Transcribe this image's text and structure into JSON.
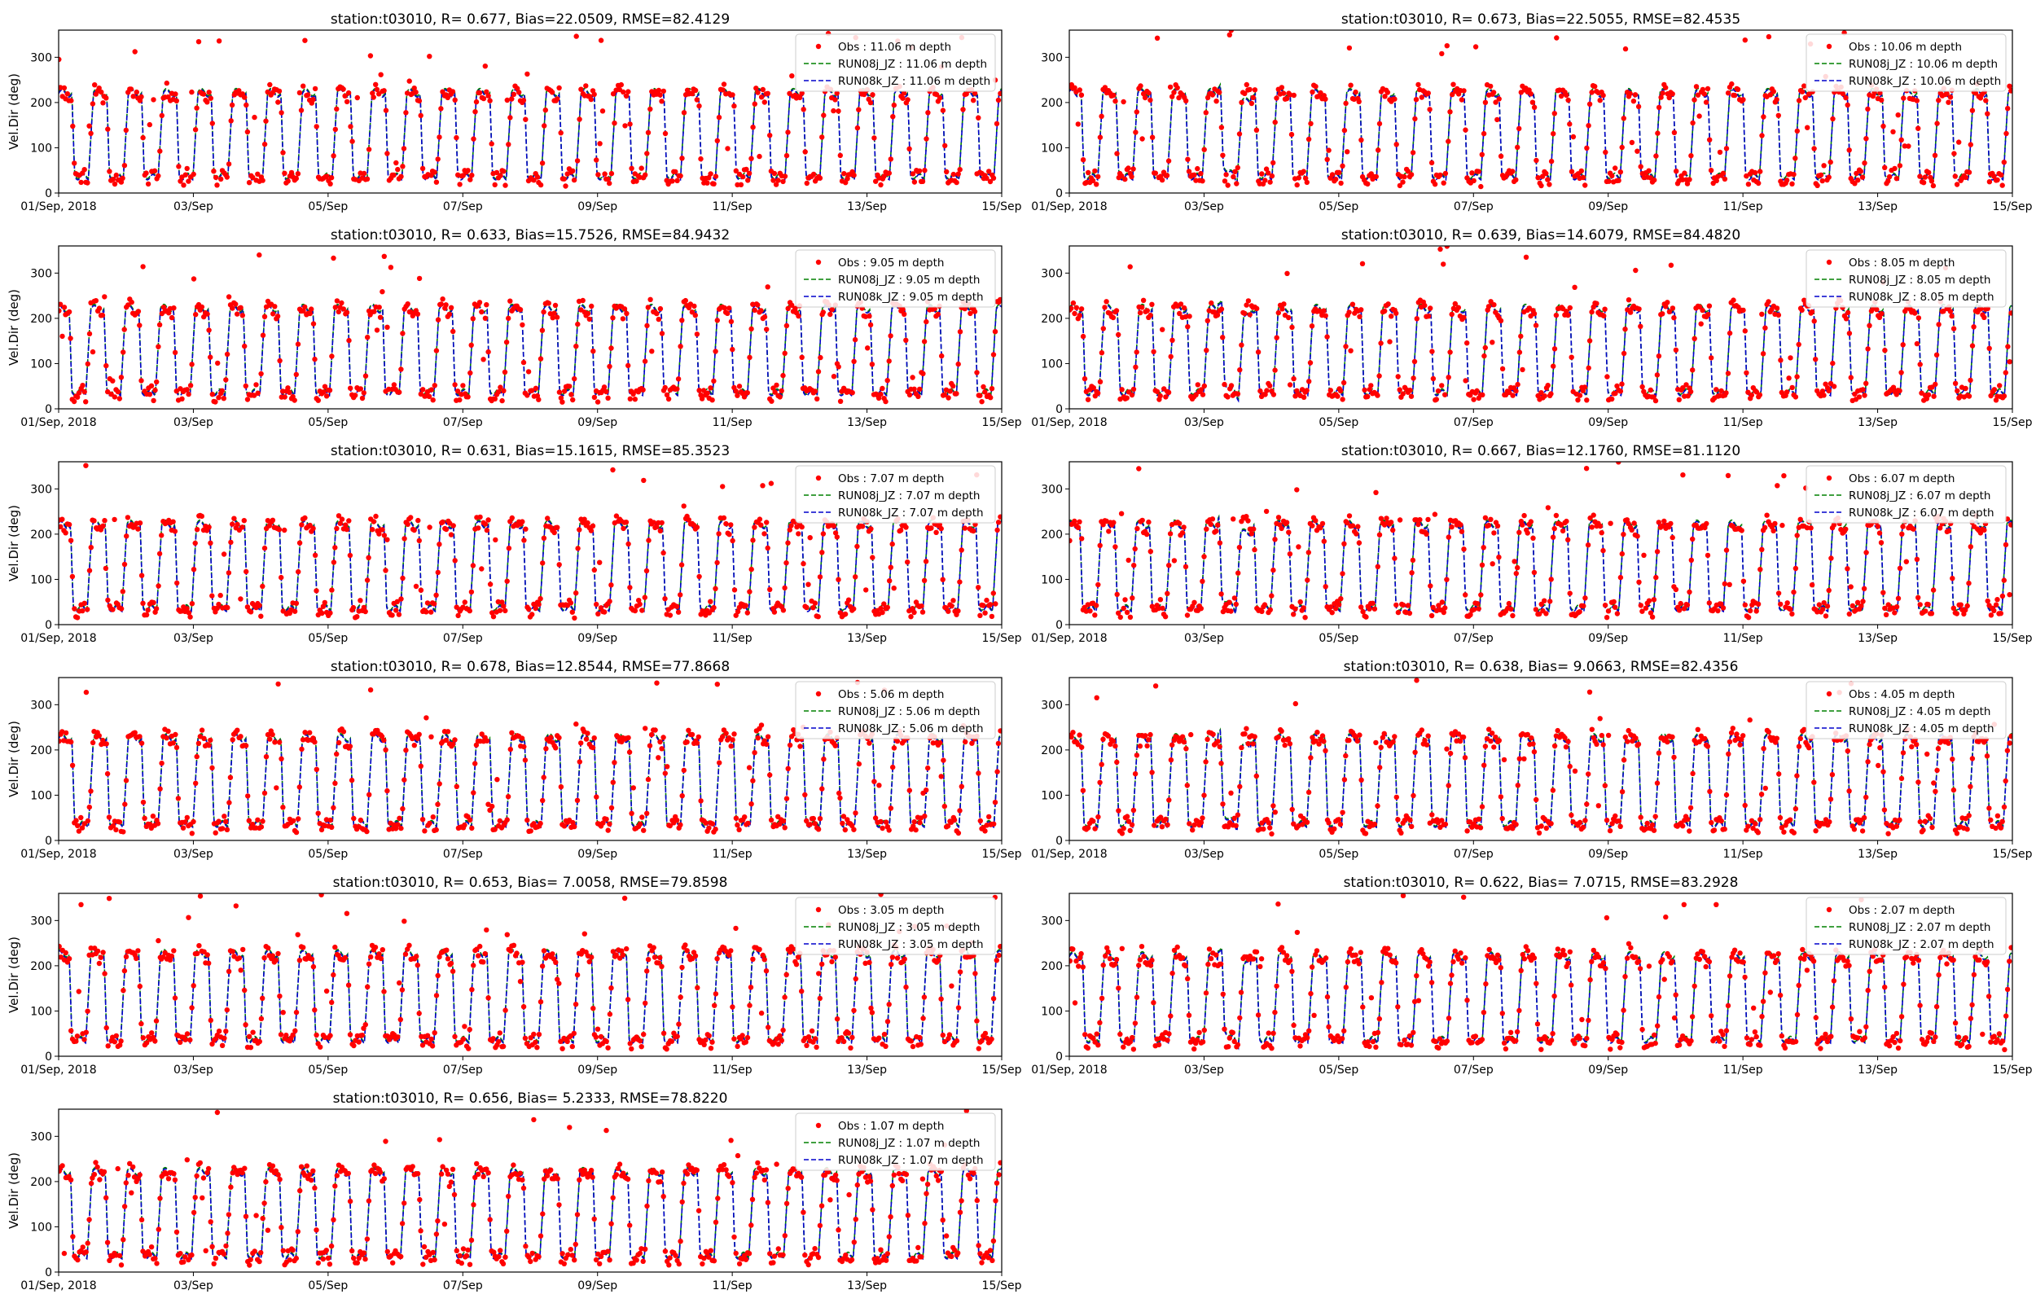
{
  "figure": {
    "colors": {
      "obs": "#ff0000",
      "run08j": "#008000",
      "run08k": "#0000cc",
      "axis": "#000000"
    }
  },
  "chart_data": [
    {
      "type": "scatter",
      "title": "station:t03010, R= 0.677, Bias=22.0509, RMSE=82.4129",
      "xlabel": "",
      "ylabel": "Vel.Dir (deg)",
      "x_range": [
        "2018-09-01",
        "2018-09-15"
      ],
      "ylim": [
        0,
        360
      ],
      "x_tick_labels": [
        "01/Sep, 2018",
        "03/Sep",
        "05/Sep",
        "07/Sep",
        "09/Sep",
        "11/Sep",
        "13/Sep",
        "15/Sep"
      ],
      "y_ticks": [
        0,
        100,
        200,
        300
      ],
      "legend_position": "top-right",
      "series": [
        {
          "name": "Obs : 11.06 m depth",
          "style": "points",
          "color": "#ff0000"
        },
        {
          "name": "RUN08j_JZ : 11.06 m depth",
          "style": "dashed-line",
          "color": "#008000"
        },
        {
          "name": "RUN08k_JZ : 11.06 m depth",
          "style": "dashed-line",
          "color": "#0000cc"
        }
      ],
      "pattern": {
        "upper_deg": 220,
        "lower_deg": 35
      }
    },
    {
      "type": "scatter",
      "title": "station:t03010, R= 0.673, Bias=22.5055, RMSE=82.4535",
      "xlabel": "",
      "ylabel": "",
      "x_range": [
        "2018-09-01",
        "2018-09-15"
      ],
      "ylim": [
        0,
        360
      ],
      "x_tick_labels": [
        "01/Sep, 2018",
        "03/Sep",
        "05/Sep",
        "07/Sep",
        "09/Sep",
        "11/Sep",
        "13/Sep",
        "15/Sep"
      ],
      "y_ticks": [
        0,
        100,
        200,
        300
      ],
      "legend_position": "top-right",
      "series": [
        {
          "name": "Obs : 10.06 m depth",
          "style": "points",
          "color": "#ff0000"
        },
        {
          "name": "RUN08j_JZ : 10.06 m depth",
          "style": "dashed-line",
          "color": "#008000"
        },
        {
          "name": "RUN08k_JZ : 10.06 m depth",
          "style": "dashed-line",
          "color": "#0000cc"
        }
      ],
      "pattern": {
        "upper_deg": 220,
        "lower_deg": 35
      }
    },
    {
      "type": "scatter",
      "title": "station:t03010, R= 0.633, Bias=15.7526, RMSE=84.9432",
      "xlabel": "",
      "ylabel": "Vel.Dir (deg)",
      "x_range": [
        "2018-09-01",
        "2018-09-15"
      ],
      "ylim": [
        0,
        360
      ],
      "x_tick_labels": [
        "01/Sep, 2018",
        "03/Sep",
        "05/Sep",
        "07/Sep",
        "09/Sep",
        "11/Sep",
        "13/Sep",
        "15/Sep"
      ],
      "y_ticks": [
        0,
        100,
        200,
        300
      ],
      "legend_position": "top-right",
      "series": [
        {
          "name": "Obs : 9.05 m depth",
          "style": "points",
          "color": "#ff0000"
        },
        {
          "name": "RUN08j_JZ : 9.05 m depth",
          "style": "dashed-line",
          "color": "#008000"
        },
        {
          "name": "RUN08k_JZ : 9.05 m depth",
          "style": "dashed-line",
          "color": "#0000cc"
        }
      ],
      "pattern": {
        "upper_deg": 220,
        "lower_deg": 35
      }
    },
    {
      "type": "scatter",
      "title": "station:t03010, R= 0.639, Bias=14.6079, RMSE=84.4820",
      "xlabel": "",
      "ylabel": "",
      "x_range": [
        "2018-09-01",
        "2018-09-15"
      ],
      "ylim": [
        0,
        360
      ],
      "x_tick_labels": [
        "01/Sep, 2018",
        "03/Sep",
        "05/Sep",
        "07/Sep",
        "09/Sep",
        "11/Sep",
        "13/Sep",
        "15/Sep"
      ],
      "y_ticks": [
        0,
        100,
        200,
        300
      ],
      "legend_position": "top-right",
      "series": [
        {
          "name": "Obs : 8.05 m depth",
          "style": "points",
          "color": "#ff0000"
        },
        {
          "name": "RUN08j_JZ : 8.05 m depth",
          "style": "dashed-line",
          "color": "#008000"
        },
        {
          "name": "RUN08k_JZ : 8.05 m depth",
          "style": "dashed-line",
          "color": "#0000cc"
        }
      ],
      "pattern": {
        "upper_deg": 220,
        "lower_deg": 35
      }
    },
    {
      "type": "scatter",
      "title": "station:t03010, R= 0.631, Bias=15.1615, RMSE=85.3523",
      "xlabel": "",
      "ylabel": "Vel.Dir (deg)",
      "x_range": [
        "2018-09-01",
        "2018-09-15"
      ],
      "ylim": [
        0,
        360
      ],
      "x_tick_labels": [
        "01/Sep, 2018",
        "03/Sep",
        "05/Sep",
        "07/Sep",
        "09/Sep",
        "11/Sep",
        "13/Sep",
        "15/Sep"
      ],
      "y_ticks": [
        0,
        100,
        200,
        300
      ],
      "legend_position": "top-right",
      "series": [
        {
          "name": "Obs : 7.07 m depth",
          "style": "points",
          "color": "#ff0000"
        },
        {
          "name": "RUN08j_JZ : 7.07 m depth",
          "style": "dashed-line",
          "color": "#008000"
        },
        {
          "name": "RUN08k_JZ : 7.07 m depth",
          "style": "dashed-line",
          "color": "#0000cc"
        }
      ],
      "pattern": {
        "upper_deg": 220,
        "lower_deg": 35
      }
    },
    {
      "type": "scatter",
      "title": "station:t03010, R= 0.667, Bias=12.1760, RMSE=81.1120",
      "xlabel": "",
      "ylabel": "",
      "x_range": [
        "2018-09-01",
        "2018-09-15"
      ],
      "ylim": [
        0,
        360
      ],
      "x_tick_labels": [
        "01/Sep, 2018",
        "03/Sep",
        "05/Sep",
        "07/Sep",
        "09/Sep",
        "11/Sep",
        "13/Sep",
        "15/Sep"
      ],
      "y_ticks": [
        0,
        100,
        200,
        300
      ],
      "legend_position": "top-right",
      "series": [
        {
          "name": "Obs : 6.07 m depth",
          "style": "points",
          "color": "#ff0000"
        },
        {
          "name": "RUN08j_JZ : 6.07 m depth",
          "style": "dashed-line",
          "color": "#008000"
        },
        {
          "name": "RUN08k_JZ : 6.07 m depth",
          "style": "dashed-line",
          "color": "#0000cc"
        }
      ],
      "pattern": {
        "upper_deg": 220,
        "lower_deg": 35
      }
    },
    {
      "type": "scatter",
      "title": "station:t03010, R= 0.678, Bias=12.8544, RMSE=77.8668",
      "xlabel": "",
      "ylabel": "Vel.Dir (deg)",
      "x_range": [
        "2018-09-01",
        "2018-09-15"
      ],
      "ylim": [
        0,
        360
      ],
      "x_tick_labels": [
        "01/Sep, 2018",
        "03/Sep",
        "05/Sep",
        "07/Sep",
        "09/Sep",
        "11/Sep",
        "13/Sep",
        "15/Sep"
      ],
      "y_ticks": [
        0,
        100,
        200,
        300
      ],
      "legend_position": "top-right",
      "series": [
        {
          "name": "Obs : 5.06 m depth",
          "style": "points",
          "color": "#ff0000"
        },
        {
          "name": "RUN08j_JZ : 5.06 m depth",
          "style": "dashed-line",
          "color": "#008000"
        },
        {
          "name": "RUN08k_JZ : 5.06 m depth",
          "style": "dashed-line",
          "color": "#0000cc"
        }
      ],
      "pattern": {
        "upper_deg": 225,
        "lower_deg": 35
      }
    },
    {
      "type": "scatter",
      "title": "station:t03010, R= 0.638, Bias= 9.0663, RMSE=82.4356",
      "xlabel": "",
      "ylabel": "",
      "x_range": [
        "2018-09-01",
        "2018-09-15"
      ],
      "ylim": [
        0,
        360
      ],
      "x_tick_labels": [
        "01/Sep, 2018",
        "03/Sep",
        "05/Sep",
        "07/Sep",
        "09/Sep",
        "11/Sep",
        "13/Sep",
        "15/Sep"
      ],
      "y_ticks": [
        0,
        100,
        200,
        300
      ],
      "legend_position": "top-right",
      "series": [
        {
          "name": "Obs : 4.05 m depth",
          "style": "points",
          "color": "#ff0000"
        },
        {
          "name": "RUN08j_JZ : 4.05 m depth",
          "style": "dashed-line",
          "color": "#008000"
        },
        {
          "name": "RUN08k_JZ : 4.05 m depth",
          "style": "dashed-line",
          "color": "#0000cc"
        }
      ],
      "pattern": {
        "upper_deg": 225,
        "lower_deg": 35
      }
    },
    {
      "type": "scatter",
      "title": "station:t03010, R= 0.653, Bias= 7.0058, RMSE=79.8598",
      "xlabel": "",
      "ylabel": "Vel.Dir (deg)",
      "x_range": [
        "2018-09-01",
        "2018-09-15"
      ],
      "ylim": [
        0,
        360
      ],
      "x_tick_labels": [
        "01/Sep, 2018",
        "03/Sep",
        "05/Sep",
        "07/Sep",
        "09/Sep",
        "11/Sep",
        "13/Sep",
        "15/Sep"
      ],
      "y_ticks": [
        0,
        100,
        200,
        300
      ],
      "legend_position": "top-right",
      "series": [
        {
          "name": "Obs : 3.05 m depth",
          "style": "points",
          "color": "#ff0000"
        },
        {
          "name": "RUN08j_JZ : 3.05 m depth",
          "style": "dashed-line",
          "color": "#008000"
        },
        {
          "name": "RUN08k_JZ : 3.05 m depth",
          "style": "dashed-line",
          "color": "#0000cc"
        }
      ],
      "pattern": {
        "upper_deg": 225,
        "lower_deg": 35
      }
    },
    {
      "type": "scatter",
      "title": "station:t03010, R= 0.622, Bias= 7.0715, RMSE=83.2928",
      "xlabel": "",
      "ylabel": "",
      "x_range": [
        "2018-09-01",
        "2018-09-15"
      ],
      "ylim": [
        0,
        360
      ],
      "x_tick_labels": [
        "01/Sep, 2018",
        "03/Sep",
        "05/Sep",
        "07/Sep",
        "09/Sep",
        "11/Sep",
        "13/Sep",
        "15/Sep"
      ],
      "y_ticks": [
        0,
        100,
        200,
        300
      ],
      "legend_position": "top-right",
      "series": [
        {
          "name": "Obs : 2.07 m depth",
          "style": "points",
          "color": "#ff0000"
        },
        {
          "name": "RUN08j_JZ : 2.07 m depth",
          "style": "dashed-line",
          "color": "#008000"
        },
        {
          "name": "RUN08k_JZ : 2.07 m depth",
          "style": "dashed-line",
          "color": "#0000cc"
        }
      ],
      "pattern": {
        "upper_deg": 220,
        "lower_deg": 35
      }
    },
    {
      "type": "scatter",
      "title": "station:t03010, R= 0.656, Bias= 5.2333, RMSE=78.8220",
      "xlabel": "",
      "ylabel": "Vel.Dir (deg)",
      "x_range": [
        "2018-09-01",
        "2018-09-15"
      ],
      "ylim": [
        0,
        360
      ],
      "x_tick_labels": [
        "01/Sep, 2018",
        "03/Sep",
        "05/Sep",
        "07/Sep",
        "09/Sep",
        "11/Sep",
        "13/Sep",
        "15/Sep"
      ],
      "y_ticks": [
        0,
        100,
        200,
        300
      ],
      "legend_position": "top-right",
      "series": [
        {
          "name": "Obs : 1.07 m depth",
          "style": "points",
          "color": "#ff0000"
        },
        {
          "name": "RUN08j_JZ : 1.07 m depth",
          "style": "dashed-line",
          "color": "#008000"
        },
        {
          "name": "RUN08k_JZ : 1.07 m depth",
          "style": "dashed-line",
          "color": "#0000cc"
        }
      ],
      "pattern": {
        "upper_deg": 220,
        "lower_deg": 35
      }
    }
  ]
}
